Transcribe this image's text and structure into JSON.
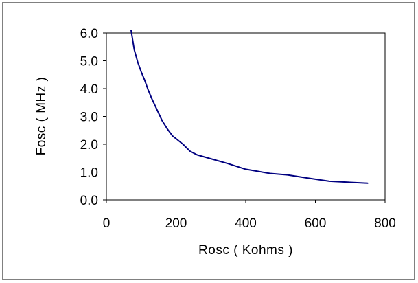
{
  "chart_data": {
    "type": "line",
    "title": "",
    "xlabel": "Rosc ( Kohms )",
    "ylabel": "Fosc ( MHz )",
    "xlim": [
      0,
      800
    ],
    "ylim": [
      0.0,
      6.0
    ],
    "x_ticks": [
      0,
      200,
      400,
      600,
      800
    ],
    "y_ticks": [
      0.0,
      1.0,
      2.0,
      3.0,
      4.0,
      5.0,
      6.0
    ],
    "x_tick_labels": [
      "0",
      "200",
      "400",
      "600",
      "800"
    ],
    "y_tick_labels": [
      "0.0",
      "1.0",
      "2.0",
      "3.0",
      "4.0",
      "5.0",
      "6.0"
    ],
    "grid": false,
    "legend": "none",
    "series": [
      {
        "color": "#000080",
        "x": [
          71,
          80,
          90,
          100,
          110,
          120,
          130,
          145,
          160,
          175,
          190,
          200,
          220,
          240,
          260,
          300,
          350,
          400,
          470,
          520,
          580,
          640,
          700,
          750
        ],
        "y": [
          6.1,
          5.4,
          4.95,
          4.6,
          4.3,
          3.95,
          3.65,
          3.25,
          2.85,
          2.55,
          2.3,
          2.2,
          2.0,
          1.75,
          1.62,
          1.48,
          1.3,
          1.1,
          0.95,
          0.9,
          0.78,
          0.67,
          0.63,
          0.6
        ]
      }
    ]
  }
}
